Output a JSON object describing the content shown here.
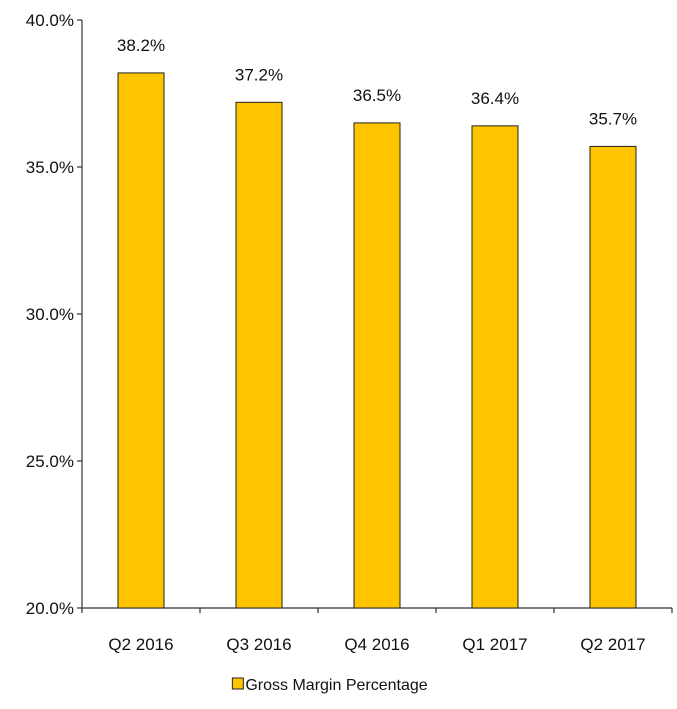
{
  "chart_data": {
    "type": "bar",
    "categories": [
      "Q2 2016",
      "Q3 2016",
      "Q4 2016",
      "Q1 2017",
      "Q2 2017"
    ],
    "series": [
      {
        "name": "Gross Margin Percentage",
        "values": [
          38.2,
          37.2,
          36.5,
          36.4,
          35.7
        ],
        "data_labels": [
          "38.2%",
          "37.2%",
          "36.5%",
          "36.4%",
          "35.7%"
        ],
        "color": "#FFC400",
        "stroke": "#222222"
      }
    ],
    "title": "",
    "xlabel": "",
    "ylabel": "",
    "ylim": [
      20,
      40
    ],
    "yticks": [
      20,
      25,
      30,
      35,
      40
    ],
    "ytick_labels": [
      "20.0%",
      "25.0%",
      "30.0%",
      "35.0%",
      "40.0%"
    ],
    "grid": false,
    "legend": {
      "placement": "bottom-center",
      "label": "Gross Margin Percentage"
    }
  }
}
